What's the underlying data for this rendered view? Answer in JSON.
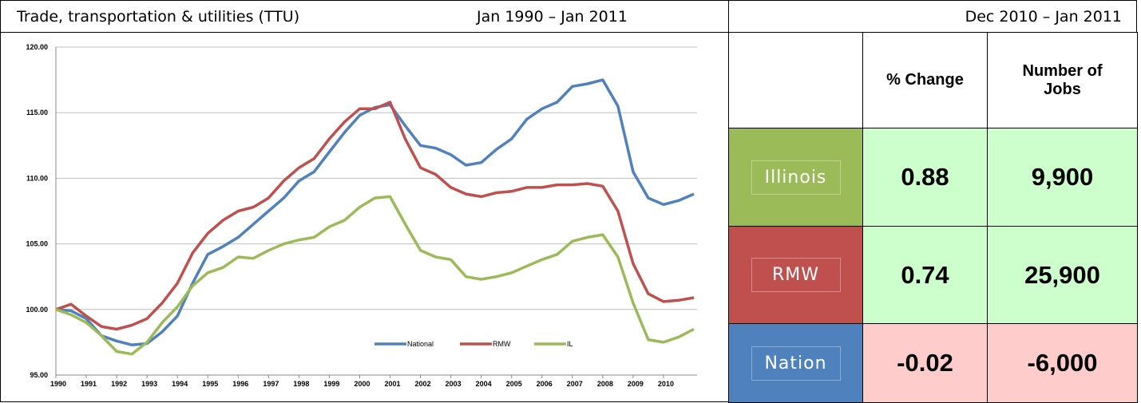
{
  "header": {
    "title": "Trade, transportation & utilities (TTU)",
    "period": "Jan 1990 – Jan 2011"
  },
  "chart_data": {
    "type": "line",
    "x": [
      1990,
      1990.5,
      1991,
      1991.5,
      1992,
      1992.5,
      1993,
      1993.5,
      1994,
      1994.5,
      1995,
      1995.5,
      1996,
      1996.5,
      1997,
      1997.5,
      1998,
      1998.5,
      1999,
      1999.5,
      2000,
      2000.5,
      2001,
      2001.5,
      2002,
      2002.5,
      2003,
      2003.5,
      2004,
      2004.5,
      2005,
      2005.5,
      2006,
      2006.5,
      2007,
      2007.5,
      2008,
      2008.5,
      2009,
      2009.5,
      2010,
      2010.5,
      2011
    ],
    "series": [
      {
        "name": "National",
        "color": "#4f81bd",
        "values": [
          100.0,
          99.9,
          99.3,
          98.0,
          97.6,
          97.3,
          97.4,
          98.3,
          99.5,
          102.0,
          104.2,
          104.8,
          105.5,
          106.5,
          107.5,
          108.5,
          109.8,
          110.5,
          112.0,
          113.5,
          114.8,
          115.4,
          115.6,
          114.0,
          112.5,
          112.3,
          111.8,
          111.0,
          111.2,
          112.2,
          113.0,
          114.5,
          115.3,
          115.8,
          117.0,
          117.2,
          117.5,
          115.5,
          110.5,
          108.5,
          108.0,
          108.3,
          108.8
        ]
      },
      {
        "name": "RMW",
        "color": "#c0504d",
        "values": [
          100.0,
          100.4,
          99.5,
          98.7,
          98.5,
          98.8,
          99.3,
          100.5,
          102.0,
          104.3,
          105.8,
          106.8,
          107.5,
          107.8,
          108.5,
          109.8,
          110.8,
          111.5,
          113.0,
          114.3,
          115.3,
          115.3,
          115.8,
          113.0,
          110.8,
          110.3,
          109.3,
          108.8,
          108.6,
          108.9,
          109.0,
          109.3,
          109.3,
          109.5,
          109.5,
          109.6,
          109.4,
          107.5,
          103.5,
          101.2,
          100.6,
          100.7,
          100.9
        ]
      },
      {
        "name": "IL",
        "color": "#9bbb59",
        "values": [
          100.0,
          99.6,
          99.0,
          98.0,
          96.8,
          96.6,
          97.5,
          99.0,
          100.2,
          101.8,
          102.8,
          103.2,
          104.0,
          103.9,
          104.5,
          105.0,
          105.3,
          105.5,
          106.3,
          106.8,
          107.8,
          108.5,
          108.6,
          106.5,
          104.5,
          104.0,
          103.8,
          102.5,
          102.3,
          102.5,
          102.8,
          103.3,
          103.8,
          104.2,
          105.2,
          105.5,
          105.7,
          104.0,
          100.5,
          97.7,
          97.5,
          97.9,
          98.5
        ]
      }
    ],
    "xlim": [
      1990,
      2011
    ],
    "xticks": [
      1990,
      1991,
      1992,
      1993,
      1994,
      1995,
      1996,
      1997,
      1998,
      1999,
      2000,
      2001,
      2002,
      2003,
      2004,
      2005,
      2006,
      2007,
      2008,
      2009,
      2010
    ],
    "ylim": [
      95,
      120
    ],
    "yticks": [
      {
        "value": 95,
        "label": "95.00"
      },
      {
        "value": 100,
        "label": "100.00"
      },
      {
        "value": 105,
        "label": "105.00"
      },
      {
        "value": 110,
        "label": "110.00"
      },
      {
        "value": 115,
        "label": "115.00"
      },
      {
        "value": 120,
        "label": "120.00"
      }
    ],
    "grid": true,
    "legend": "bottom"
  },
  "table": {
    "period": "Dec 2010 – Jan 2011",
    "columns": [
      "% Change",
      "Number of Jobs"
    ],
    "rows": [
      {
        "label": "Illinois",
        "color": "#9bbb59",
        "background": "#ccffcc",
        "cells": [
          "0.88",
          "9,900"
        ]
      },
      {
        "label": "RMW",
        "color": "#c0504d",
        "background": "#ccffcc",
        "cells": [
          "0.74",
          "25,900"
        ]
      },
      {
        "label": "Nation",
        "color": "#4f81bd",
        "background": "#ffcccc",
        "cells": [
          "-0.02",
          "-6,000"
        ]
      }
    ]
  }
}
